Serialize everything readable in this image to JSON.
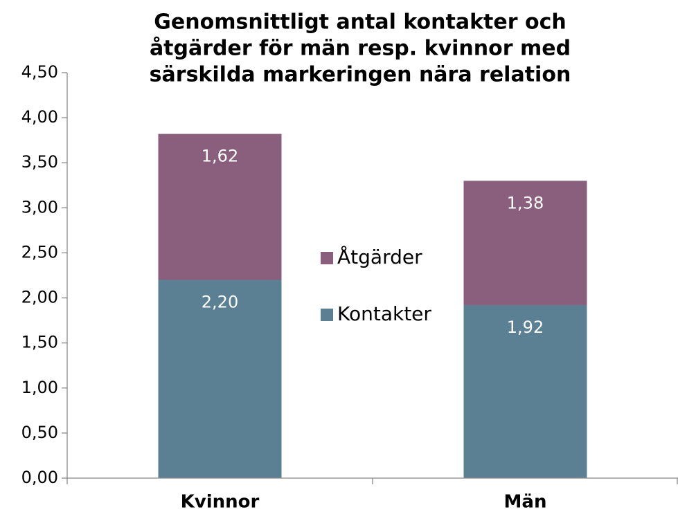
{
  "chart_data": {
    "type": "stacked_bar",
    "title": [
      "Genomsnittligt antal kontakter och",
      "åtgärder för män resp. kvinnor med",
      "särskilda markeringen nära relation"
    ],
    "categories": [
      "Kvinnor",
      "Män"
    ],
    "series": [
      {
        "name": "Kontakter",
        "color": "#5b7f93",
        "values": [
          2.2,
          1.92
        ],
        "value_labels": [
          "2,20",
          "1,92"
        ]
      },
      {
        "name": "Åtgärder",
        "color": "#8a5f7e",
        "values": [
          1.62,
          1.38
        ],
        "value_labels": [
          "1,62",
          "1,38"
        ]
      }
    ],
    "ylim": [
      0,
      4.5
    ],
    "yticks": [
      {
        "value": 0,
        "label": "0,00"
      },
      {
        "value": 0.5,
        "label": "0,50"
      },
      {
        "value": 1,
        "label": "1,00"
      },
      {
        "value": 1.5,
        "label": "1,50"
      },
      {
        "value": 2,
        "label": "2,00"
      },
      {
        "value": 2.5,
        "label": "2,50"
      },
      {
        "value": 3,
        "label": "3,00"
      },
      {
        "value": 3.5,
        "label": "3,50"
      },
      {
        "value": 4,
        "label": "4,00"
      },
      {
        "value": 4.5,
        "label": "4,50"
      }
    ],
    "grid": false,
    "legend": "center"
  }
}
